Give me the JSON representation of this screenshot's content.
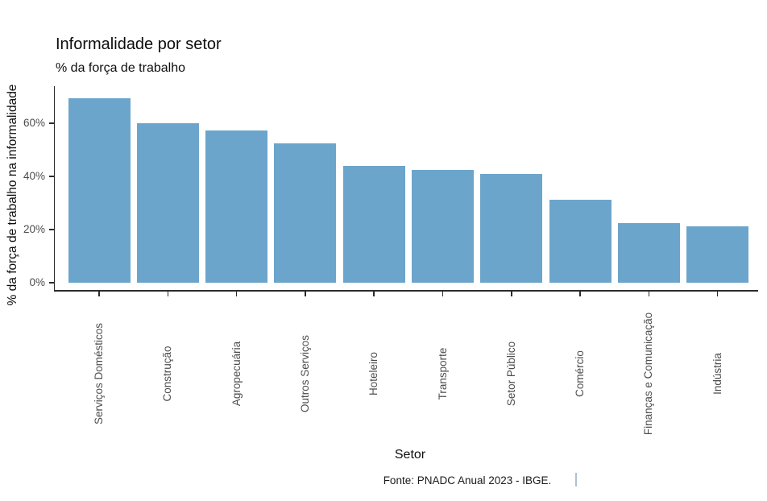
{
  "chart": {
    "title": "Informalidade por setor",
    "subtitle": "% da força de trabalho",
    "y_axis_title": "% da força de trabalho na informalidade",
    "x_axis_title": "Setor",
    "caption": "Fonte: PNADC Anual 2023 - IBGE.",
    "colors": {
      "bar": "#6CA5CB",
      "axis_line": "#2b2b2b",
      "tick_text": "#4d4d4d",
      "title_text": "#0d0d0d"
    }
  },
  "chart_data": {
    "type": "bar",
    "title": "Informalidade por setor",
    "subtitle": "% da força de trabalho",
    "xlabel": "Setor",
    "ylabel": "% da força de trabalho na informalidade",
    "caption": "Fonte: PNADC Anual 2023 - IBGE.",
    "categories": [
      "Serviços Domésticos",
      "Construção",
      "Agropecuária",
      "Outros Serviços",
      "Hoteleiro",
      "Transporte",
      "Setor Público",
      "Comércio",
      "Finanças e Comunicação",
      "Indústria"
    ],
    "values": [
      69.4,
      59.9,
      57.3,
      52.4,
      44.0,
      42.3,
      40.8,
      31.3,
      22.5,
      21.2
    ],
    "unit": "%",
    "ylim": [
      0,
      74
    ],
    "yticks": [
      0,
      20,
      40,
      60
    ],
    "ytick_labels": [
      "0%",
      "20%",
      "40%",
      "60%"
    ],
    "grid": false,
    "legend": false,
    "bar_color": "#6CA5CB"
  }
}
